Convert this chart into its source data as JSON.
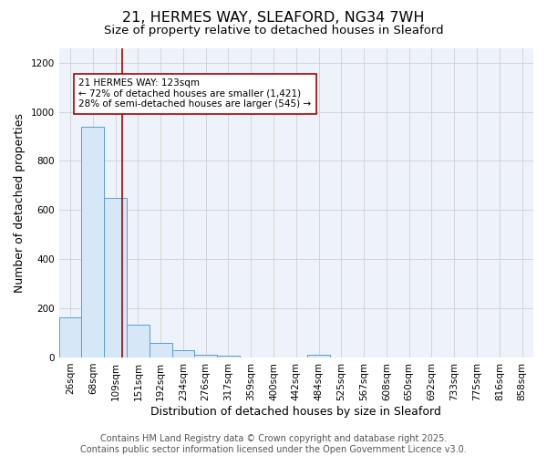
{
  "title_line1": "21, HERMES WAY, SLEAFORD, NG34 7WH",
  "title_line2": "Size of property relative to detached houses in Sleaford",
  "xlabel": "Distribution of detached houses by size in Sleaford",
  "ylabel": "Number of detached properties",
  "bin_labels": [
    "26sqm",
    "68sqm",
    "109sqm",
    "151sqm",
    "192sqm",
    "234sqm",
    "276sqm",
    "317sqm",
    "359sqm",
    "400sqm",
    "442sqm",
    "484sqm",
    "525sqm",
    "567sqm",
    "608sqm",
    "650sqm",
    "692sqm",
    "733sqm",
    "775sqm",
    "816sqm",
    "858sqm"
  ],
  "bar_heights": [
    163,
    940,
    650,
    135,
    60,
    30,
    12,
    7,
    0,
    0,
    0,
    10,
    0,
    0,
    0,
    0,
    0,
    0,
    0,
    0,
    0
  ],
  "bar_color": "#d6e8f7",
  "bar_edge_color": "#5b9bd5",
  "grid_color": "#d0d0d0",
  "background_color": "#eef2fb",
  "property_line_x": 2.28,
  "property_line_color": "#aa0000",
  "annotation_text": "21 HERMES WAY: 123sqm\n← 72% of detached houses are smaller (1,421)\n28% of semi-detached houses are larger (545) →",
  "annotation_box_color": "#aa0000",
  "footer_line1": "Contains HM Land Registry data © Crown copyright and database right 2025.",
  "footer_line2": "Contains public sector information licensed under the Open Government Licence v3.0.",
  "ylim": [
    0,
    1260
  ],
  "yticks": [
    0,
    200,
    400,
    600,
    800,
    1000,
    1200
  ],
  "title_fontsize": 11.5,
  "subtitle_fontsize": 9.5,
  "axis_label_fontsize": 9,
  "tick_fontsize": 7.5,
  "annotation_fontsize": 7.5,
  "footer_fontsize": 7
}
